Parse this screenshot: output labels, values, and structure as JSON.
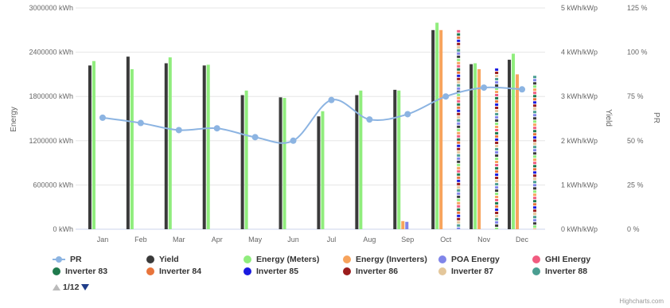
{
  "chart_data": {
    "type": "bar",
    "categories": [
      "Jan",
      "Feb",
      "Mar",
      "Apr",
      "May",
      "Jun",
      "Jul",
      "Aug",
      "Sep",
      "Oct",
      "Nov",
      "Dec"
    ],
    "axes": {
      "energy": {
        "title": "Energy",
        "ticks": [
          "0 kWh",
          "600000 kWh",
          "1200000 kWh",
          "1800000 kWh",
          "2400000 kWh",
          "3000000 kWh"
        ],
        "range": [
          0,
          3000000
        ]
      },
      "yield": {
        "title": "Yield",
        "ticks": [
          "0 kWh/kWp",
          "1 kWh/kWp",
          "2 kWh/kWp",
          "3 kWh/kWp",
          "4 kWh/kWp",
          "5 kWh/kWp"
        ],
        "range": [
          0,
          5
        ]
      },
      "pr": {
        "title": "PR",
        "ticks": [
          "0 %",
          "25 %",
          "50 %",
          "75 %",
          "100 %",
          "125 %"
        ],
        "range": [
          0,
          125
        ]
      }
    },
    "series": [
      {
        "name": "Yield",
        "color": "#3a3a3a",
        "axis": "yield",
        "values": [
          3.7,
          3.9,
          3.75,
          3.7,
          3.03,
          2.98,
          2.55,
          3.03,
          3.15,
          4.5,
          3.73,
          3.83
        ]
      },
      {
        "name": "Energy (Meters)",
        "color": "#90ed7d",
        "axis": "energy",
        "values": [
          2280000,
          2170000,
          2330000,
          2230000,
          1880000,
          1780000,
          1600000,
          1880000,
          1880000,
          2800000,
          2250000,
          2380000
        ]
      },
      {
        "name": "Energy (Inverters)",
        "color": "#f7a35c",
        "axis": "energy",
        "values": [
          null,
          null,
          null,
          null,
          null,
          null,
          null,
          null,
          110000,
          2700000,
          2170000,
          2100000
        ]
      },
      {
        "name": "POA Energy",
        "color": "#8085e9",
        "axis": "energy",
        "values": [
          null,
          null,
          null,
          null,
          null,
          null,
          null,
          null,
          100000,
          null,
          null,
          null
        ]
      },
      {
        "name": "PR",
        "color": "#8cb4e2",
        "axis": "pr",
        "kind": "line",
        "values": [
          63,
          60,
          56,
          57,
          52,
          50,
          73,
          62,
          65,
          75,
          80,
          79
        ]
      }
    ],
    "striped_columns": {
      "categories": [
        "Oct",
        "Nov",
        "Dec"
      ],
      "values": [
        2700000,
        2180000,
        2080000
      ],
      "colors": [
        "#f15c80",
        "#1f7a4d",
        "#e8743b",
        "#1a1ae0",
        "#9b1c1c",
        "#e4c79b",
        "#4a9e91",
        "#8085e9",
        "#3a3a3a",
        "#90ed7d",
        "#f7a35c"
      ]
    },
    "legend": [
      {
        "name": "PR",
        "symbol": "line",
        "color": "#8cb4e2"
      },
      {
        "name": "Yield",
        "symbol": "dot",
        "color": "#3a3a3a"
      },
      {
        "name": "Energy (Meters)",
        "symbol": "dot",
        "color": "#90ed7d"
      },
      {
        "name": "Energy (Inverters)",
        "symbol": "dot",
        "color": "#f7a35c"
      },
      {
        "name": "POA Energy",
        "symbol": "dot",
        "color": "#8085e9"
      },
      {
        "name": "GHI Energy",
        "symbol": "dot",
        "color": "#f15c80"
      },
      {
        "name": "Inverter 83",
        "symbol": "dot",
        "color": "#1f7a4d"
      },
      {
        "name": "Inverter 84",
        "symbol": "dot",
        "color": "#e8743b"
      },
      {
        "name": "Inverter 85",
        "symbol": "dot",
        "color": "#1a1ae0"
      },
      {
        "name": "Inverter 86",
        "symbol": "dot",
        "color": "#9b1c1c"
      },
      {
        "name": "Inverter 87",
        "symbol": "dot",
        "color": "#e4c79b"
      },
      {
        "name": "Inverter 88",
        "symbol": "dot",
        "color": "#4a9e91"
      }
    ],
    "legend_placement": "bottom",
    "grid": true
  },
  "pager": {
    "label": "1/12"
  },
  "credits": "Highcharts.com"
}
